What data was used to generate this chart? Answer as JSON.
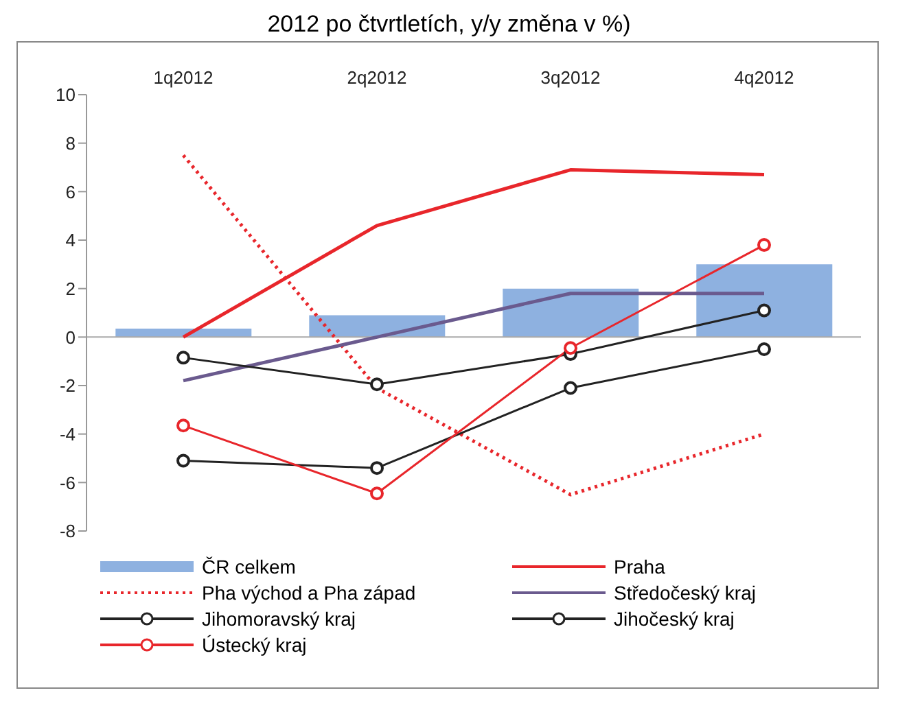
{
  "chart_data": {
    "type": "line",
    "title": "2012 po čtvrtletích, y/y změna v %)",
    "categories": [
      "1q2012",
      "2q2012",
      "3q2012",
      "4q2012"
    ],
    "series": [
      {
        "name": "ČR celkem",
        "type": "bar",
        "color": "#8eb1e0",
        "values": [
          0.35,
          0.9,
          2.0,
          3.0
        ]
      },
      {
        "name": "Praha",
        "color": "#e8262b",
        "values": [
          0,
          4.6,
          6.9,
          6.7
        ]
      },
      {
        "name": "Pha východ a Pha západ",
        "color": "#e8262b",
        "line_style": "dotted",
        "values": [
          7.5,
          -2.1,
          -6.5,
          -4.0
        ]
      },
      {
        "name": "Středočeský kraj",
        "color": "#6a5a8e",
        "values": [
          -1.8,
          0,
          1.8,
          1.8
        ]
      },
      {
        "name": "Jihomoravský kraj",
        "color": "#222222",
        "marker": "circle",
        "values": [
          -5.1,
          -5.4,
          -2.1,
          -0.5
        ]
      },
      {
        "name": "Jihočeský kraj",
        "color": "#222222",
        "marker": "circle",
        "values": [
          -0.85,
          -1.95,
          -0.7,
          1.1
        ]
      },
      {
        "name": "Ústecký kraj",
        "color": "#e8262b",
        "marker": "circle",
        "values": [
          -3.65,
          -6.45,
          -0.45,
          3.8
        ]
      }
    ],
    "ylim": [
      -8,
      10
    ],
    "yticks": [
      -8,
      -6,
      -4,
      -2,
      0,
      2,
      4,
      6,
      8,
      10
    ],
    "legend": "bottom"
  }
}
